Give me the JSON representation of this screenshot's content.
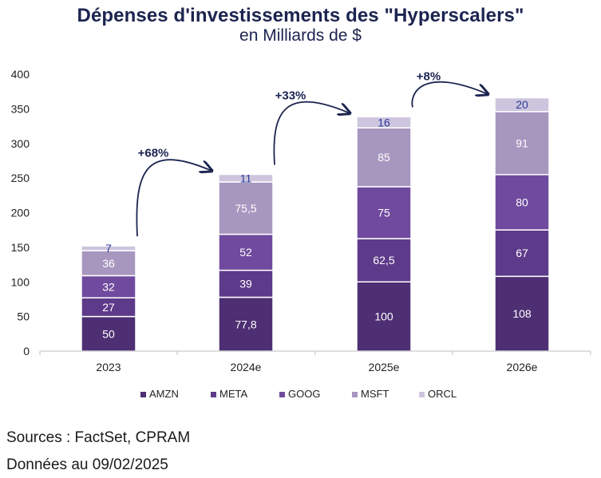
{
  "title": "Dépenses d'investissements des \"Hyperscalers\"",
  "subtitle": "en Milliards de $",
  "footer": {
    "source": "Sources : FactSet, CPRAM",
    "date": "Données au 09/02/2025"
  },
  "chart_data": {
    "type": "bar",
    "stacked": true,
    "categories": [
      "2023",
      "2024e",
      "2025e",
      "2026e"
    ],
    "series": [
      {
        "name": "AMZN",
        "color": "#4e2f73",
        "values": [
          50,
          77.8,
          100,
          108
        ],
        "labels": [
          "50",
          "77,8",
          "100",
          "108"
        ]
      },
      {
        "name": "META",
        "color": "#5e3a8a",
        "values": [
          27,
          39,
          62.5,
          67
        ],
        "labels": [
          "27",
          "39",
          "62,5",
          "67"
        ]
      },
      {
        "name": "GOOG",
        "color": "#6f4a9e",
        "values": [
          32,
          52,
          75,
          80
        ],
        "labels": [
          "32",
          "52",
          "75",
          "80"
        ]
      },
      {
        "name": "MSFT",
        "color": "#a797bf",
        "values": [
          36,
          75.5,
          85,
          91
        ],
        "labels": [
          "36",
          "75,5",
          "85",
          "91"
        ]
      },
      {
        "name": "ORCL",
        "color": "#cdc5dd",
        "values": [
          7,
          11,
          16,
          20
        ],
        "labels": [
          "7",
          "11",
          "16",
          "20"
        ]
      }
    ],
    "growth_annotations": [
      {
        "from": "2023",
        "to": "2024e",
        "label": "+68%"
      },
      {
        "from": "2024e",
        "to": "2025e",
        "label": "+33%"
      },
      {
        "from": "2025e",
        "to": "2026e",
        "label": "+8%"
      }
    ],
    "ylim": [
      0,
      400
    ],
    "yticks": [
      0,
      50,
      100,
      150,
      200,
      250,
      300,
      350,
      400
    ],
    "grid": false,
    "legend": "bottom"
  }
}
